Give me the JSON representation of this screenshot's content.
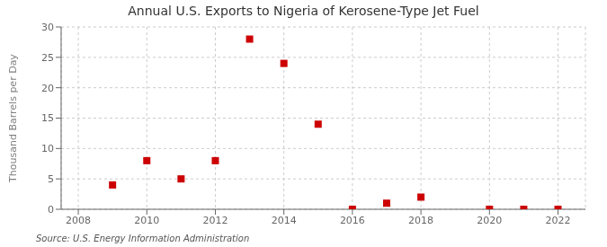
{
  "chart_data": {
    "type": "scatter",
    "title": "Annual U.S. Exports to Nigeria of Kerosene-Type Jet Fuel",
    "y_label": "Thousand Barrels per Day",
    "annotations": [
      "Source: U.S. Energy Information Administration"
    ],
    "x": [
      2009,
      2010,
      2011,
      2012,
      2013,
      2014,
      2015,
      2016,
      2017,
      2018,
      2020,
      2021,
      2022
    ],
    "values": [
      4.0,
      8.0,
      5.0,
      8.0,
      28.0,
      24.0,
      14.0,
      0.0,
      1.0,
      2.0,
      0.0,
      0.0,
      0.0
    ],
    "color": "#cc0000",
    "marker": "square",
    "xlim": [
      2007.5,
      2022.8
    ],
    "xticks": [
      2008,
      2010,
      2012,
      2014,
      2016,
      2018,
      2020,
      2022
    ],
    "ylim": [
      0,
      30
    ],
    "yticks": [
      0,
      5,
      10,
      15,
      20,
      25,
      30
    ],
    "grid": true
  }
}
